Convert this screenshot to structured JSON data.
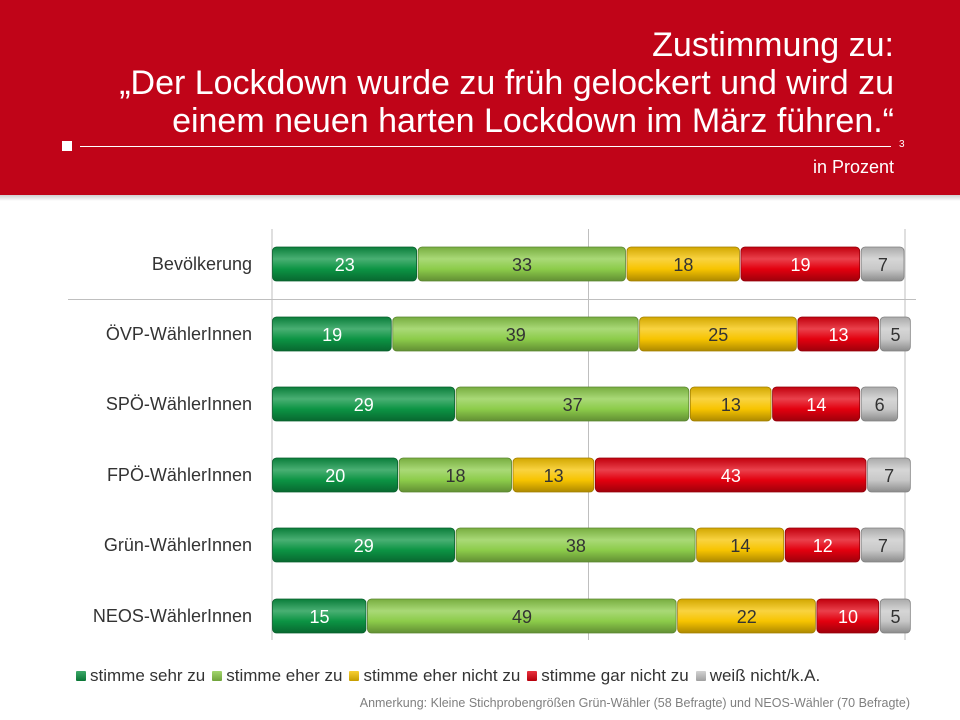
{
  "header": {
    "title_lines": [
      "Zustimmung zu:",
      "„Der Lockdown wurde zu früh gelockert und wird zu",
      "einem neuen harten Lockdown im März führen.“"
    ],
    "page_number": "3",
    "unit": "in Prozent",
    "accent_color": "#c00418"
  },
  "chart_data": {
    "type": "bar",
    "orientation": "horizontal",
    "stacked": true,
    "categories": [
      "Bevölkerung",
      "ÖVP-WählerInnen",
      "SPÖ-WählerInnen",
      "FPÖ-WählerInnen",
      "Grün-WählerInnen",
      "NEOS-WählerInnen"
    ],
    "series": [
      {
        "name": "stimme sehr zu",
        "color": "#0c9444",
        "values": [
          23,
          19,
          29,
          20,
          29,
          15
        ]
      },
      {
        "name": "stimme eher zu",
        "color": "#8ccc4a",
        "values": [
          33,
          39,
          37,
          18,
          38,
          49
        ]
      },
      {
        "name": "stimme eher nicht zu",
        "color": "#f7c400",
        "values": [
          18,
          25,
          13,
          13,
          14,
          22
        ]
      },
      {
        "name": "stimme gar nicht zu",
        "color": "#e3000f",
        "values": [
          19,
          13,
          14,
          43,
          12,
          10
        ]
      },
      {
        "name": "weiß nicht/k.A.",
        "color": "#c8c8c8",
        "values": [
          7,
          5,
          6,
          7,
          7,
          5
        ]
      }
    ],
    "xlim": [
      0,
      100
    ],
    "grid": true,
    "legend_position": "bottom"
  },
  "note": "Anmerkung: Kleine Stichprobengrößen Grün-Wähler (58 Befragte) und NEOS-Wähler (70 Befragte)"
}
